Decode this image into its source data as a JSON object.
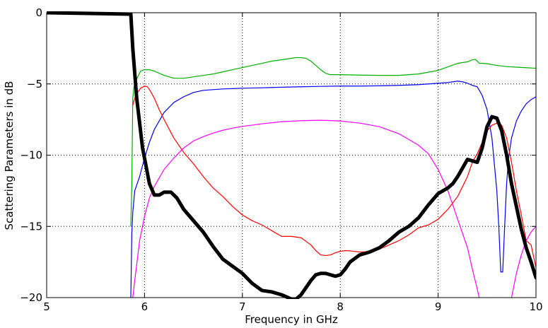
{
  "chart_data": {
    "type": "line",
    "title": "",
    "xlabel": "Frequency in GHz",
    "ylabel": "Scattering Parameters in dB",
    "xlim": [
      5,
      10
    ],
    "ylim": [
      -20,
      0
    ],
    "grid": true,
    "xticks": [
      5,
      6,
      7,
      8,
      9,
      10
    ],
    "xtick_labels": [
      "5",
      "6",
      "7",
      "8",
      "9",
      "10"
    ],
    "yticks": [
      0,
      -5,
      -10,
      -15,
      -20
    ],
    "ytick_labels": [
      "0",
      "−5",
      "−10",
      "−15",
      "−20"
    ],
    "series": [
      {
        "name": "black",
        "color": "#000000",
        "line_width": 5,
        "x": [
          5.0,
          5.86,
          5.88,
          5.92,
          5.98,
          6.05,
          6.1,
          6.15,
          6.2,
          6.27,
          6.33,
          6.4,
          6.5,
          6.6,
          6.7,
          6.8,
          6.9,
          7.0,
          7.1,
          7.2,
          7.3,
          7.4,
          7.5,
          7.55,
          7.6,
          7.65,
          7.7,
          7.75,
          7.8,
          7.85,
          7.9,
          7.95,
          8.0,
          8.05,
          8.1,
          8.2,
          8.3,
          8.4,
          8.5,
          8.6,
          8.7,
          8.8,
          8.9,
          9.0,
          9.1,
          9.15,
          9.2,
          9.25,
          9.3,
          9.35,
          9.4,
          9.45,
          9.5,
          9.55,
          9.6,
          9.65,
          9.7,
          9.75,
          9.8,
          9.85,
          9.9,
          9.95,
          10.0
        ],
        "values": [
          0.0,
          -0.1,
          -2.5,
          -6.0,
          -9.5,
          -12.0,
          -12.8,
          -12.8,
          -12.6,
          -12.6,
          -13.0,
          -13.8,
          -14.6,
          -15.4,
          -16.4,
          -17.3,
          -17.8,
          -18.3,
          -19.0,
          -19.5,
          -19.6,
          -19.8,
          -20.1,
          -20.1,
          -19.8,
          -19.3,
          -18.8,
          -18.4,
          -18.3,
          -18.3,
          -18.4,
          -18.5,
          -18.4,
          -18.0,
          -17.5,
          -17.0,
          -16.8,
          -16.5,
          -16.0,
          -15.4,
          -15.0,
          -14.4,
          -13.5,
          -12.7,
          -12.3,
          -12.0,
          -11.5,
          -10.9,
          -10.3,
          -10.4,
          -10.5,
          -9.5,
          -8.0,
          -7.3,
          -7.4,
          -8.3,
          -10.0,
          -12.0,
          -13.6,
          -15.2,
          -16.5,
          -17.5,
          -18.6
        ]
      },
      {
        "name": "green",
        "color": "#00b000",
        "line_width": 1.2,
        "x": [
          5.86,
          5.87,
          5.88,
          5.89,
          5.9,
          5.93,
          5.96,
          6.0,
          6.05,
          6.1,
          6.2,
          6.3,
          6.4,
          6.5,
          6.6,
          6.7,
          6.8,
          6.9,
          7.0,
          7.1,
          7.2,
          7.3,
          7.4,
          7.5,
          7.55,
          7.6,
          7.65,
          7.7,
          7.75,
          7.8,
          7.85,
          7.9,
          8.0,
          8.2,
          8.4,
          8.6,
          8.8,
          9.0,
          9.1,
          9.2,
          9.3,
          9.35,
          9.38,
          9.4,
          9.42,
          9.45,
          9.5,
          9.6,
          9.7,
          9.8,
          9.9,
          10.0
        ],
        "values": [
          -15.0,
          -12.0,
          -6.0,
          -5.3,
          -5.0,
          -4.5,
          -4.1,
          -4.0,
          -4.0,
          -4.1,
          -4.4,
          -4.6,
          -4.6,
          -4.5,
          -4.4,
          -4.3,
          -4.15,
          -4.0,
          -3.85,
          -3.7,
          -3.55,
          -3.4,
          -3.3,
          -3.2,
          -3.15,
          -3.15,
          -3.2,
          -3.4,
          -3.7,
          -4.0,
          -4.25,
          -4.35,
          -4.35,
          -4.38,
          -4.4,
          -4.4,
          -4.3,
          -4.05,
          -3.8,
          -3.55,
          -3.45,
          -3.3,
          -3.28,
          -3.4,
          -3.55,
          -3.55,
          -3.58,
          -3.7,
          -3.78,
          -3.82,
          -3.86,
          -3.9
        ]
      },
      {
        "name": "blue",
        "color": "#0000ee",
        "line_width": 1.2,
        "x": [
          5.86,
          5.87,
          5.88,
          5.9,
          5.95,
          6.0,
          6.05,
          6.1,
          6.2,
          6.3,
          6.4,
          6.5,
          6.6,
          6.7,
          6.8,
          6.9,
          7.0,
          7.2,
          7.4,
          7.6,
          7.8,
          8.0,
          8.2,
          8.4,
          8.6,
          8.8,
          9.0,
          9.1,
          9.2,
          9.25,
          9.3,
          9.35,
          9.4,
          9.45,
          9.5,
          9.55,
          9.6,
          9.62,
          9.64,
          9.66,
          9.68,
          9.7,
          9.72,
          9.75,
          9.8,
          9.85,
          9.9,
          9.95,
          10.0
        ],
        "values": [
          -20.0,
          -15.5,
          -14.0,
          -12.5,
          -11.5,
          -10.2,
          -9.1,
          -8.2,
          -7.0,
          -6.3,
          -5.9,
          -5.6,
          -5.45,
          -5.4,
          -5.35,
          -5.33,
          -5.3,
          -5.27,
          -5.23,
          -5.2,
          -5.17,
          -5.15,
          -5.15,
          -5.13,
          -5.1,
          -5.05,
          -4.95,
          -4.9,
          -4.8,
          -4.85,
          -4.95,
          -5.1,
          -5.2,
          -5.8,
          -6.8,
          -8.8,
          -12.5,
          -15.0,
          -18.2,
          -18.2,
          -15.0,
          -12.0,
          -10.2,
          -8.8,
          -7.6,
          -6.9,
          -6.4,
          -6.1,
          -5.9
        ]
      },
      {
        "name": "red",
        "color": "#ff0000",
        "line_width": 1.2,
        "x": [
          5.88,
          5.9,
          5.93,
          5.96,
          6.0,
          6.03,
          6.06,
          6.1,
          6.15,
          6.2,
          6.3,
          6.4,
          6.5,
          6.6,
          6.7,
          6.8,
          6.9,
          7.0,
          7.1,
          7.2,
          7.3,
          7.4,
          7.5,
          7.6,
          7.7,
          7.75,
          7.8,
          7.85,
          7.9,
          7.95,
          8.0,
          8.05,
          8.1,
          8.2,
          8.3,
          8.4,
          8.5,
          8.6,
          8.7,
          8.8,
          8.9,
          9.0,
          9.1,
          9.2,
          9.3,
          9.35,
          9.4,
          9.45,
          9.5,
          9.55,
          9.6,
          9.65,
          9.7,
          9.75,
          9.8,
          9.85,
          9.9,
          9.95,
          10.0
        ],
        "values": [
          -6.5,
          -6.0,
          -5.6,
          -5.3,
          -5.15,
          -5.2,
          -5.5,
          -6.0,
          -6.8,
          -7.5,
          -8.8,
          -9.8,
          -10.6,
          -11.5,
          -12.3,
          -12.9,
          -13.6,
          -14.2,
          -14.6,
          -14.9,
          -15.3,
          -15.7,
          -15.7,
          -15.8,
          -16.3,
          -16.7,
          -17.0,
          -17.05,
          -17.0,
          -16.85,
          -16.75,
          -16.7,
          -16.72,
          -16.8,
          -16.78,
          -16.6,
          -16.3,
          -16.0,
          -15.6,
          -15.1,
          -14.9,
          -14.5,
          -13.8,
          -12.9,
          -11.5,
          -10.5,
          -9.9,
          -9.1,
          -8.3,
          -7.9,
          -7.75,
          -7.9,
          -8.8,
          -10.5,
          -12.5,
          -14.2,
          -16.0,
          -16.3,
          -17.9
        ]
      },
      {
        "name": "magenta",
        "color": "#ff00ff",
        "line_width": 1.2,
        "x": [
          5.88,
          5.9,
          5.95,
          6.0,
          6.05,
          6.1,
          6.2,
          6.3,
          6.4,
          6.5,
          6.6,
          6.7,
          6.8,
          6.9,
          7.0,
          7.2,
          7.4,
          7.6,
          7.8,
          8.0,
          8.2,
          8.4,
          8.6,
          8.8,
          8.9,
          9.0,
          9.1,
          9.2,
          9.3,
          9.35,
          9.4,
          9.42
        ],
        "values": [
          -20.0,
          -18.8,
          -16.0,
          -14.3,
          -13.0,
          -12.2,
          -11.0,
          -10.2,
          -9.5,
          -9.0,
          -8.7,
          -8.45,
          -8.25,
          -8.1,
          -7.98,
          -7.8,
          -7.65,
          -7.58,
          -7.55,
          -7.6,
          -7.75,
          -8.0,
          -8.5,
          -9.3,
          -9.9,
          -11.0,
          -12.5,
          -14.5,
          -16.5,
          -18.0,
          -19.4,
          -20.0
        ],
        "x2": [
          9.75,
          9.8,
          9.85,
          9.9,
          9.95,
          10.0
        ],
        "values2": [
          -20.0,
          -18.3,
          -17.0,
          -16.0,
          -15.4,
          -15.0
        ]
      }
    ]
  }
}
